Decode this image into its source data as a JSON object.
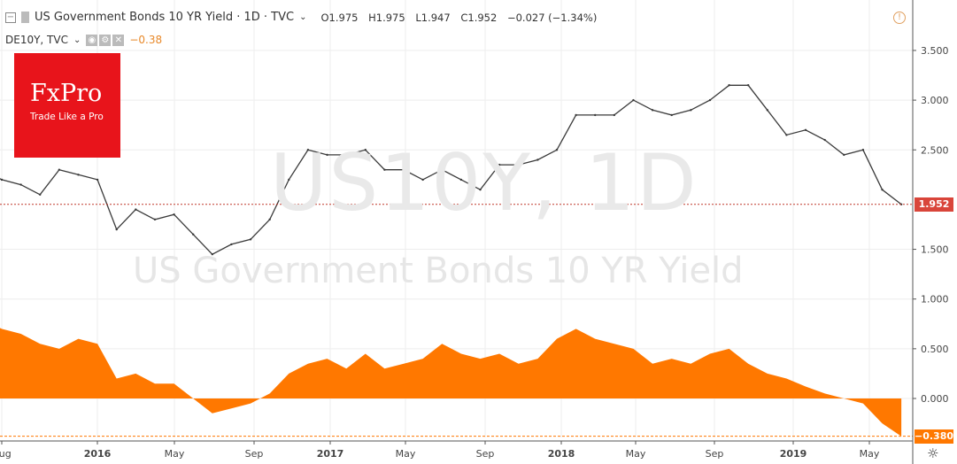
{
  "header": {
    "symbol_title": "US Government Bonds 10 YR Yield · 1D · TVC",
    "open": "O1.975",
    "high": "H1.975",
    "low": "L1.947",
    "close": "C1.952",
    "change": "−0.027 (−1.34%)",
    "compare_symbol": "DE10Y, TVC",
    "compare_value": "−0.38"
  },
  "logo": {
    "brand": "FxPro",
    "tagline": "Trade Like a Pro"
  },
  "watermark": {
    "symbol": "US10Y, 1D",
    "name": "US Government Bonds 10 YR Yield"
  },
  "price_labels": {
    "last_us": "1.952",
    "last_de": "−0.380"
  },
  "colors": {
    "us_line": "#3a3a3a",
    "de_area": "#ff7800",
    "last_us_tag": "#d9453a",
    "last_de_tag": "#ff7800"
  },
  "chart_data": {
    "type": "line",
    "title": "US Government Bonds 10 YR Yield · 1D · TVC",
    "x": [
      "2015-07",
      "2015-08",
      "2015-09",
      "2015-10",
      "2015-11",
      "2015-12",
      "2016-01",
      "2016-02",
      "2016-03",
      "2016-04",
      "2016-05",
      "2016-06",
      "2016-07",
      "2016-08",
      "2016-09",
      "2016-10",
      "2016-11",
      "2016-12",
      "2017-01",
      "2017-02",
      "2017-03",
      "2017-04",
      "2017-05",
      "2017-06",
      "2017-07",
      "2017-08",
      "2017-09",
      "2017-10",
      "2017-11",
      "2017-12",
      "2018-01",
      "2018-02",
      "2018-03",
      "2018-04",
      "2018-05",
      "2018-06",
      "2018-07",
      "2018-08",
      "2018-09",
      "2018-10",
      "2018-11",
      "2018-12",
      "2019-01",
      "2019-02",
      "2019-03",
      "2019-04",
      "2019-05",
      "2019-06",
      "2019-07"
    ],
    "series": [
      {
        "name": "US10Y",
        "style": "candles",
        "values": [
          2.3,
          2.2,
          2.15,
          2.05,
          2.3,
          2.25,
          2.2,
          1.7,
          1.9,
          1.8,
          1.85,
          1.65,
          1.45,
          1.55,
          1.6,
          1.8,
          2.2,
          2.5,
          2.45,
          2.45,
          2.5,
          2.3,
          2.3,
          2.2,
          2.3,
          2.2,
          2.1,
          2.35,
          2.35,
          2.4,
          2.5,
          2.85,
          2.85,
          2.85,
          3.0,
          2.9,
          2.85,
          2.9,
          3.0,
          3.15,
          3.15,
          2.9,
          2.65,
          2.7,
          2.6,
          2.45,
          2.5,
          2.1,
          1.952
        ]
      },
      {
        "name": "DE10Y",
        "style": "area",
        "values": [
          0.8,
          0.7,
          0.65,
          0.55,
          0.5,
          0.6,
          0.55,
          0.2,
          0.25,
          0.15,
          0.15,
          0.0,
          -0.15,
          -0.1,
          -0.05,
          0.05,
          0.25,
          0.35,
          0.4,
          0.3,
          0.45,
          0.3,
          0.35,
          0.4,
          0.55,
          0.45,
          0.4,
          0.45,
          0.35,
          0.4,
          0.6,
          0.7,
          0.6,
          0.55,
          0.5,
          0.35,
          0.4,
          0.35,
          0.45,
          0.5,
          0.35,
          0.25,
          0.2,
          0.12,
          0.05,
          0.0,
          -0.05,
          -0.25,
          -0.38
        ]
      }
    ],
    "x_tick_labels": [
      "Aug",
      "2016",
      "May",
      "Sep",
      "2017",
      "May",
      "Sep",
      "2018",
      "May",
      "Sep",
      "2019",
      "May"
    ],
    "y_tick_labels": [
      "3.500",
      "3.000",
      "2.500",
      "1.500",
      "1.000",
      "0.500",
      "0.000"
    ],
    "ylim": [
      -0.42,
      3.85
    ],
    "grid": true
  }
}
